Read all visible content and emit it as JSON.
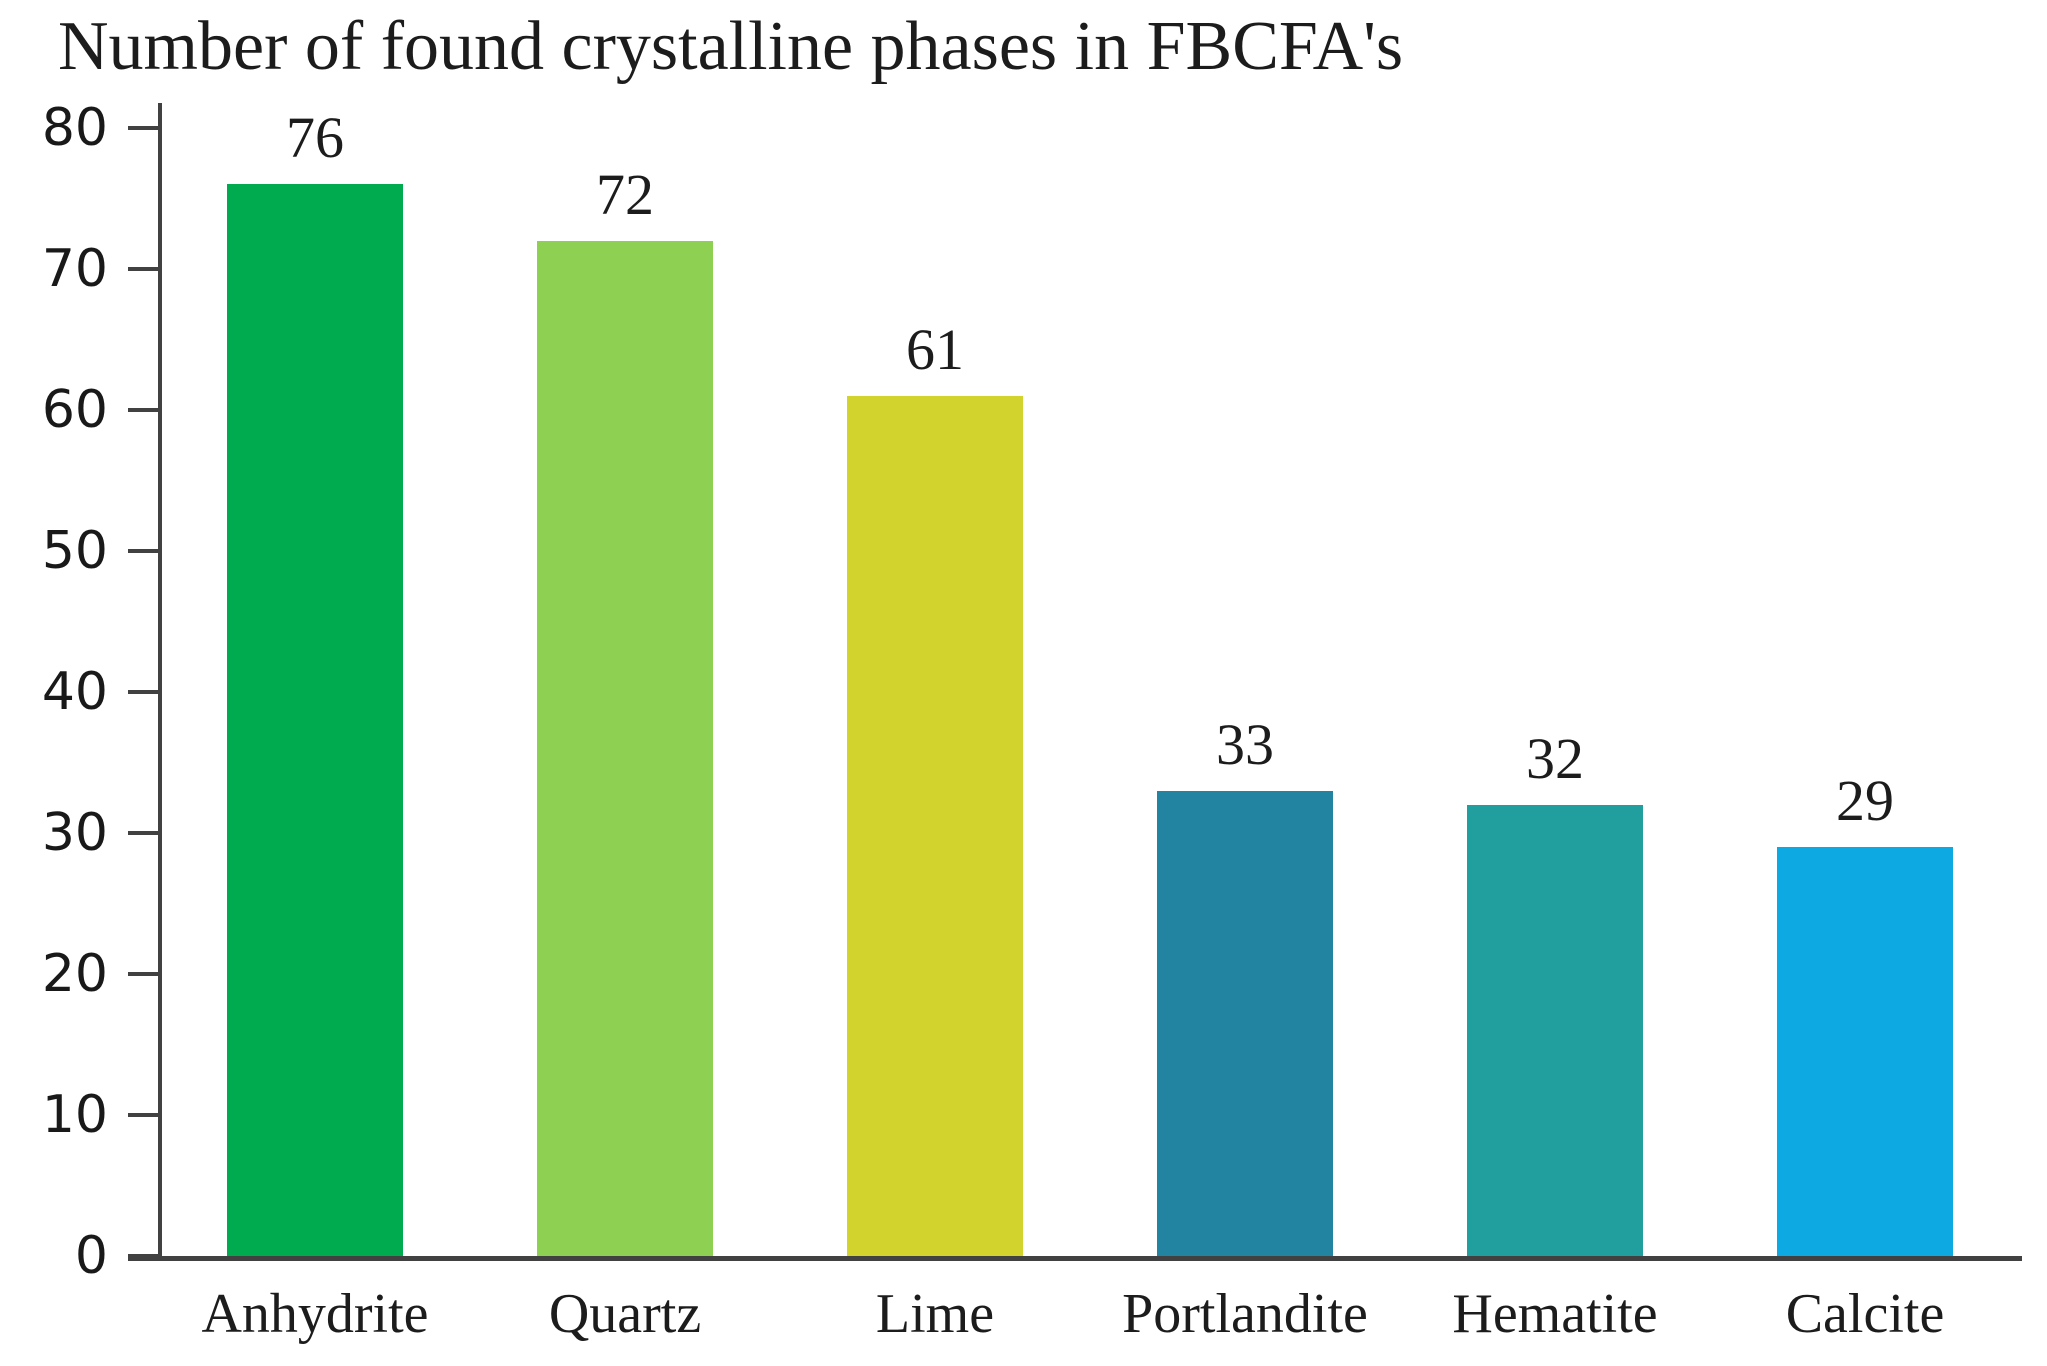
{
  "title": "Number of found crystalline phases in FBCFA's",
  "colors": {
    "axis": "#414141",
    "text": "#1c1c1c"
  },
  "chart_data": {
    "type": "bar",
    "title": "Number of found crystalline phases in FBCFA's",
    "categories": [
      "Anhydrite",
      "Quartz",
      "Lime",
      "Portlandite",
      "Hematite",
      "Calcite"
    ],
    "values": [
      76,
      72,
      61,
      33,
      32,
      29
    ],
    "bar_colors": [
      "#00ab4f",
      "#8ed152",
      "#d3d32e",
      "#2384a1",
      "#219e9e",
      "#0da9e2"
    ],
    "xlabel": "",
    "ylabel": "",
    "ylim": [
      0,
      80
    ],
    "yticks": [
      0,
      10,
      20,
      30,
      40,
      50,
      60,
      70,
      80
    ],
    "grid": false,
    "legend": false,
    "value_labels": true
  }
}
